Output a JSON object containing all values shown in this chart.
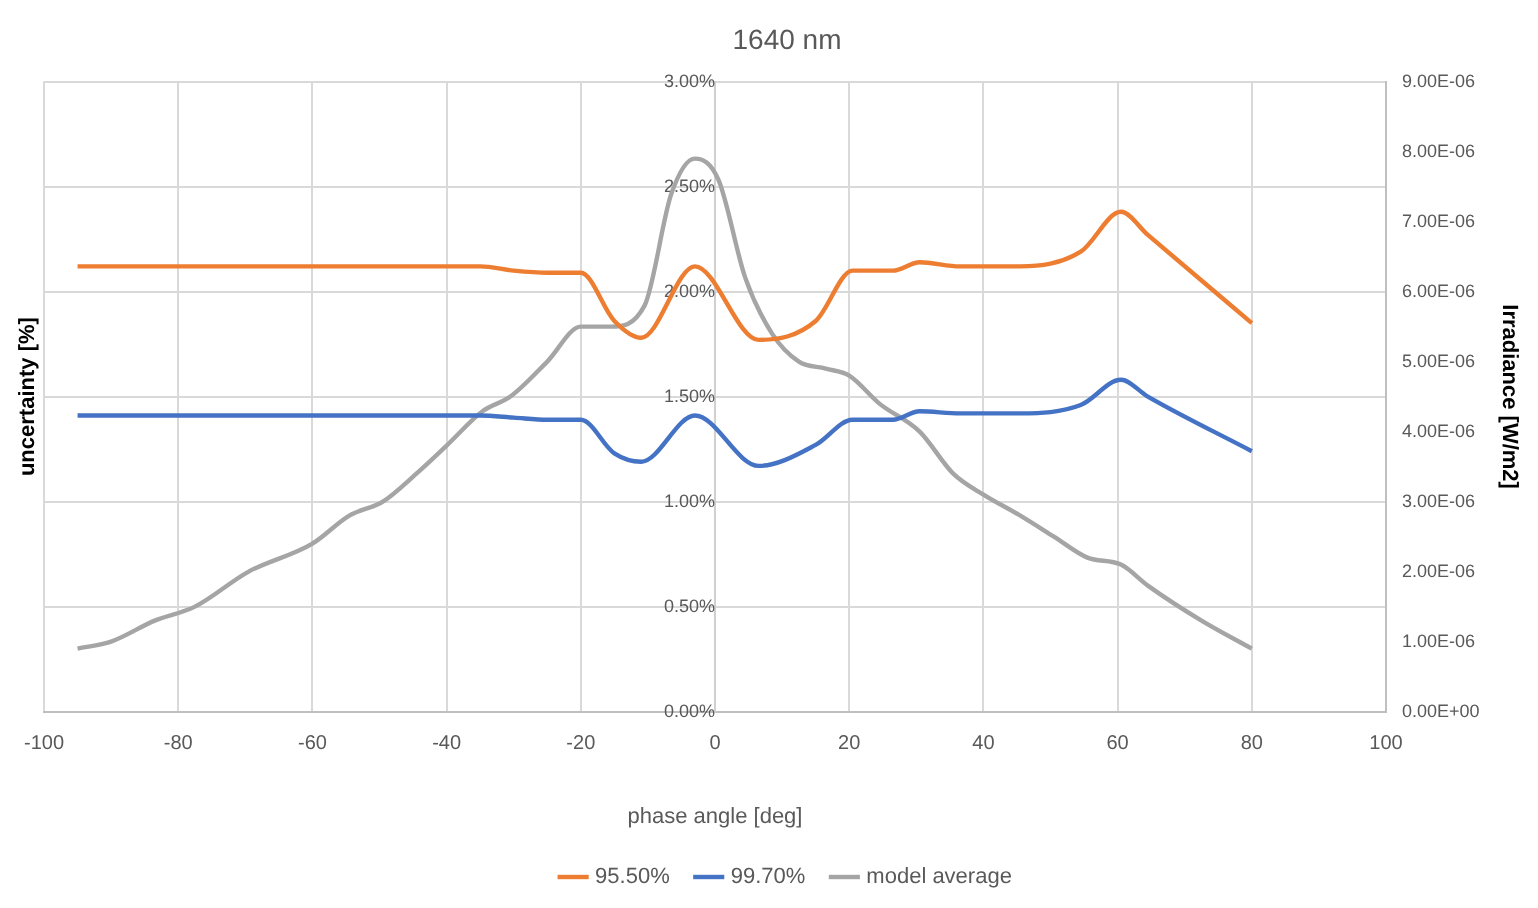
{
  "chart_data": {
    "type": "line",
    "title": "1640 nm",
    "xlabel": "phase angle [deg]",
    "ylabel": "uncertainty [%]",
    "y2label": "Irradiance [W/m2]",
    "xlim": [
      -100,
      100
    ],
    "xticks": [
      -100,
      -80,
      -60,
      -40,
      -20,
      0,
      20,
      40,
      60,
      80,
      100
    ],
    "ylim": [
      0,
      3
    ],
    "yticks": [
      {
        "value": 0,
        "label": "0.00%"
      },
      {
        "value": 0.5,
        "label": "0.50%"
      },
      {
        "value": 1,
        "label": "1.00%"
      },
      {
        "value": 1.5,
        "label": "1.50%"
      },
      {
        "value": 2,
        "label": "2.00%"
      },
      {
        "value": 2.5,
        "label": "2.50%"
      },
      {
        "value": 3,
        "label": "3.00%"
      }
    ],
    "y2lim": [
      0,
      9e-06
    ],
    "y2ticks": [
      {
        "value": 0,
        "label": "0.00E+00"
      },
      {
        "value": 1e-06,
        "label": "1.00E-06"
      },
      {
        "value": 2e-06,
        "label": "2.00E-06"
      },
      {
        "value": 3e-06,
        "label": "3.00E-06"
      },
      {
        "value": 4e-06,
        "label": "4.00E-06"
      },
      {
        "value": 5e-06,
        "label": "5.00E-06"
      },
      {
        "value": 6e-06,
        "label": "6.00E-06"
      },
      {
        "value": 7e-06,
        "label": "7.00E-06"
      },
      {
        "value": 8e-06,
        "label": "8.00E-06"
      },
      {
        "value": 9e-06,
        "label": "9.00E-06"
      }
    ],
    "grid": true,
    "legend": "bottom",
    "marker": "none",
    "line_style": "solid",
    "series": [
      {
        "name": "95.50%",
        "color": "#ed7d31",
        "x": [
          -95,
          -80,
          -60,
          -40,
          -35,
          -30,
          -25,
          -20,
          -15,
          -11,
          -3,
          6.5,
          15,
          20.5,
          26.5,
          30.5,
          36.5,
          45.5,
          54.5,
          60.5,
          64.5,
          80
        ],
        "values": [
          2.12,
          2.12,
          2.12,
          2.12,
          2.12,
          2.1,
          2.09,
          2.09,
          1.86,
          1.78,
          2.12,
          1.77,
          1.86,
          2.1,
          2.1,
          2.14,
          2.12,
          2.12,
          2.19,
          2.38,
          2.27,
          1.85
        ]
      },
      {
        "name": "99.70%",
        "color": "#4472c4",
        "x": [
          -95,
          -80,
          -60,
          -40,
          -35,
          -30,
          -25,
          -20,
          -15,
          -11,
          -3,
          6.5,
          15,
          20.5,
          26.5,
          30.5,
          36.5,
          45.5,
          54.5,
          60.5,
          64.5,
          80
        ],
        "values": [
          1.41,
          1.41,
          1.41,
          1.41,
          1.41,
          1.4,
          1.39,
          1.39,
          1.23,
          1.19,
          1.41,
          1.17,
          1.27,
          1.39,
          1.39,
          1.43,
          1.42,
          1.42,
          1.46,
          1.58,
          1.5,
          1.24
        ]
      },
      {
        "name": "model average",
        "color": "#a5a5a5",
        "axis": "y2",
        "x": [
          -95,
          -90,
          -83.5,
          -77.5,
          -69.5,
          -60,
          -54.5,
          -49.5,
          -44.5,
          -40,
          -34.5,
          -30.5,
          -25,
          -20,
          -15.5,
          -10.5,
          -6.5,
          -3,
          0.5,
          4.5,
          8.5,
          12.5,
          16.5,
          20,
          24.5,
          30.5,
          35.5,
          40,
          45.5,
          50.5,
          55.5,
          60.5,
          64.5,
          72.5,
          80
        ],
        "values": [
          9e-07,
          1e-06,
          1.3e-06,
          1.5e-06,
          2e-06,
          2.4e-06,
          2.8e-06,
          3e-06,
          3.4e-06,
          3.8e-06,
          4.3e-06,
          4.5e-06,
          5e-06,
          5.5e-06,
          5.5e-06,
          5.8e-06,
          7.4e-06,
          7.9e-06,
          7.6e-06,
          6.2e-06,
          5.4e-06,
          5e-06,
          4.9e-06,
          4.8e-06,
          4.4e-06,
          4e-06,
          3.4e-06,
          3.1e-06,
          2.8e-06,
          2.5e-06,
          2.2e-06,
          2.1e-06,
          1.8e-06,
          1.3e-06,
          9e-07
        ]
      }
    ]
  }
}
